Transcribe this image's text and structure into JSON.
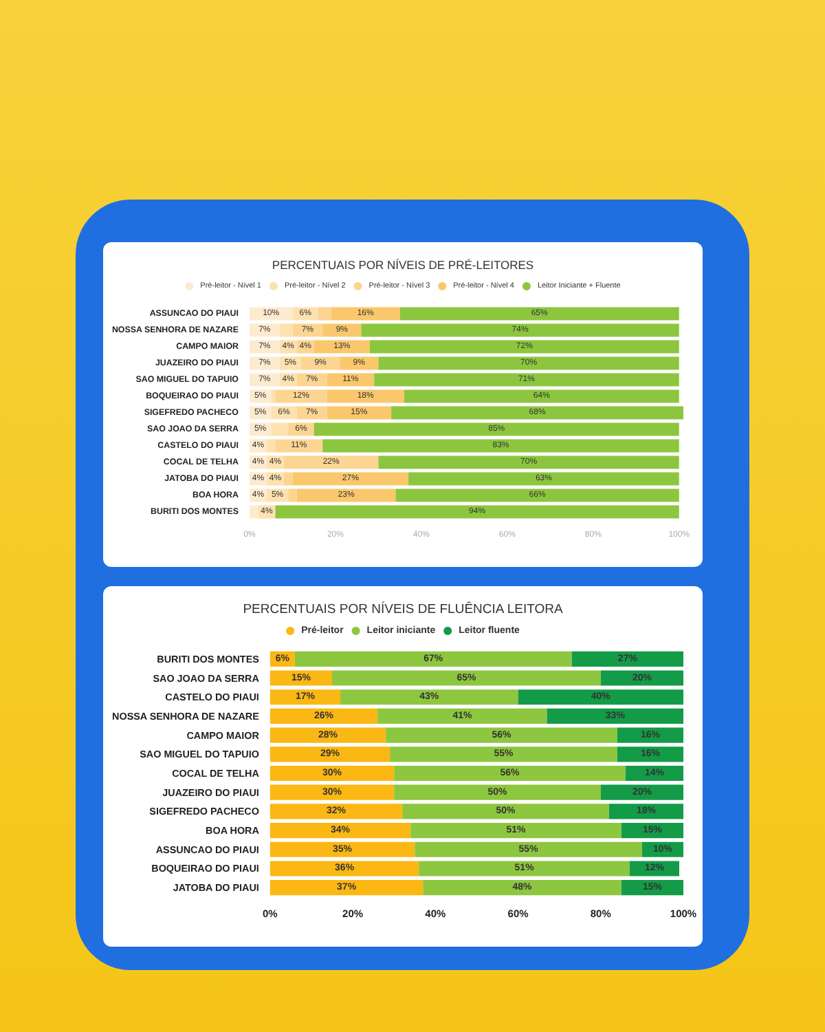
{
  "chart_data": [
    {
      "type": "bar",
      "title": "PERCENTUAIS POR NÍVEIS DE PRÉ-LEITORES",
      "orientation": "horizontal",
      "stacked": true,
      "legend": "top",
      "grid": false,
      "categories": [
        "ASSUNCAO DO PIAUI",
        "NOSSA SENHORA DE NAZARE",
        "CAMPO MAIOR",
        "JUAZEIRO DO PIAUI",
        "SAO MIGUEL DO TAPUIO",
        "BOQUEIRAO DO PIAUI",
        "SIGEFREDO PACHECO",
        "SAO JOAO DA SERRA",
        "CASTELO DO PIAUI",
        "COCAL DE TELHA",
        "JATOBA DO PIAUI",
        "BOA HORA",
        "BURITI DOS MONTES"
      ],
      "xlim": [
        0,
        101
      ],
      "xticks": [
        {
          "value": 0,
          "label": "0%"
        },
        {
          "value": 20,
          "label": "20%"
        },
        {
          "value": 40,
          "label": "40%"
        },
        {
          "value": 60,
          "label": "60%"
        },
        {
          "value": 80,
          "label": "80%"
        },
        {
          "value": 100,
          "label": "100%"
        }
      ],
      "series": [
        {
          "name": "Pré-leitor - Nível 1",
          "color": "#fdebd0",
          "values": [
            10,
            7,
            7,
            7,
            7,
            5,
            5,
            5,
            4,
            4,
            4,
            4,
            2
          ],
          "value_labels": [
            "10%",
            "7%",
            "7%",
            "7%",
            "7%",
            "5%",
            "5%",
            "5%",
            "4%",
            "4%",
            "4%",
            "4%",
            null
          ]
        },
        {
          "name": "Pré-leitor - Nível 2",
          "color": "#fde2b0",
          "values": [
            6,
            3,
            4,
            5,
            4,
            1,
            6,
            4,
            2,
            4,
            4,
            5,
            4
          ],
          "value_labels": [
            "6%",
            null,
            "4%",
            "5%",
            "4%",
            null,
            "6%",
            null,
            null,
            "4%",
            "4%",
            "5%",
            "4%"
          ]
        },
        {
          "name": "Pré-leitor - Nível 3",
          "color": "#fcd592",
          "values": [
            3,
            7,
            4,
            9,
            7,
            12,
            7,
            6,
            11,
            22,
            2,
            2,
            null
          ],
          "value_labels": [
            null,
            "7%",
            "4%",
            "9%",
            "7%",
            "12%",
            "7%",
            "6%",
            "11%",
            "22%",
            null,
            null,
            null
          ]
        },
        {
          "name": "Pré-leitor - Nível 4",
          "color": "#fbc76c",
          "values": [
            16,
            9,
            13,
            9,
            11,
            18,
            15,
            null,
            null,
            null,
            27,
            23,
            null
          ],
          "value_labels": [
            "16%",
            "9%",
            "13%",
            "9%",
            "11%",
            "18%",
            "15%",
            null,
            null,
            null,
            "27%",
            "23%",
            null
          ]
        },
        {
          "name": "Leitor Iniciante + Fluente",
          "color": "#8cc63f",
          "values": [
            65,
            74,
            72,
            70,
            71,
            64,
            68,
            85,
            83,
            70,
            63,
            66,
            94
          ],
          "value_labels": [
            "65%",
            "74%",
            "72%",
            "70%",
            "71%",
            "64%",
            "68%",
            "85%",
            "83%",
            "70%",
            "63%",
            "66%",
            "94%"
          ]
        }
      ]
    },
    {
      "type": "bar",
      "title": "PERCENTUAIS POR NÍVEIS DE FLUÊNCIA LEITORA",
      "orientation": "horizontal",
      "stacked": true,
      "legend": "top",
      "grid": false,
      "categories": [
        "BURITI DOS MONTES",
        "SAO JOAO DA SERRA",
        "CASTELO DO PIAUI",
        "NOSSA SENHORA DE NAZARE",
        "CAMPO MAIOR",
        "SAO MIGUEL DO TAPUIO",
        "COCAL DE TELHA",
        "JUAZEIRO DO PIAUI",
        "SIGEFREDO PACHECO",
        "BOA HORA",
        "ASSUNCAO DO PIAUI",
        "BOQUEIRAO DO PIAUI",
        "JATOBA DO PIAUI"
      ],
      "xlim": [
        0,
        100
      ],
      "xticks": [
        {
          "value": 0,
          "label": "0%"
        },
        {
          "value": 20,
          "label": "20%"
        },
        {
          "value": 40,
          "label": "40%"
        },
        {
          "value": 60,
          "label": "60%"
        },
        {
          "value": 80,
          "label": "80%"
        },
        {
          "value": 100,
          "label": "100%"
        }
      ],
      "series": [
        {
          "name": "Pré-leitor",
          "color": "#fbb713",
          "values": [
            6,
            15,
            17,
            26,
            28,
            29,
            30,
            30,
            32,
            34,
            35,
            36,
            37
          ],
          "value_labels": [
            "6%",
            "15%",
            "17%",
            "26%",
            "28%",
            "29%",
            "30%",
            "30%",
            "32%",
            "34%",
            "35%",
            "36%",
            "37%"
          ]
        },
        {
          "name": "Leitor iniciante",
          "color": "#8dc63f",
          "values": [
            67,
            65,
            43,
            41,
            56,
            55,
            56,
            50,
            50,
            51,
            55,
            51,
            48
          ],
          "value_labels": [
            "67%",
            "65%",
            "43%",
            "41%",
            "56%",
            "55%",
            "56%",
            "50%",
            "50%",
            "51%",
            "55%",
            "51%",
            "48%"
          ]
        },
        {
          "name": "Leitor fluente",
          "color": "#139b48",
          "values": [
            27,
            20,
            40,
            33,
            16,
            16,
            14,
            20,
            18,
            15,
            10,
            12,
            15
          ],
          "value_labels": [
            "27%",
            "20%",
            "40%",
            "33%",
            "16%",
            "16%",
            "14%",
            "20%",
            "18%",
            "15%",
            "10%",
            "12%",
            "15%"
          ]
        }
      ]
    }
  ]
}
